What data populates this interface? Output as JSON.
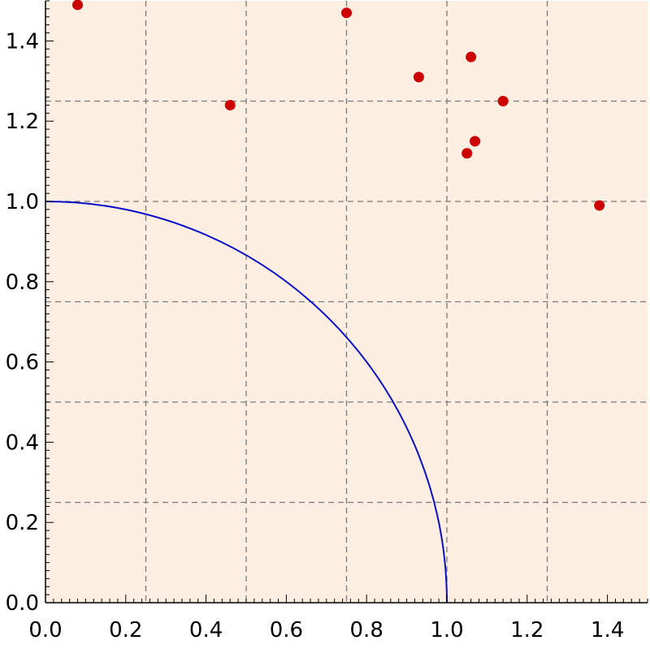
{
  "colors": {
    "plot_background": "#fdeee2",
    "grid": "#7a7a7a",
    "curve": "#0a10c8",
    "points": "#cc0000",
    "axis": "#000000"
  },
  "chart_data": {
    "type": "scatter",
    "title": "",
    "xlabel": "",
    "ylabel": "",
    "xlim": [
      0,
      1.5
    ],
    "ylim": [
      0,
      1.5
    ],
    "x_ticks": [
      0.0,
      0.2,
      0.4,
      0.6,
      0.8,
      1.0,
      1.2,
      1.4
    ],
    "y_ticks": [
      0.0,
      0.2,
      0.4,
      0.6,
      0.8,
      1.0,
      1.2,
      1.4
    ],
    "x_tick_labels": [
      "0.0",
      "0.2",
      "0.4",
      "0.6",
      "0.8",
      "1.0",
      "1.2",
      "1.4"
    ],
    "y_tick_labels": [
      "0.0",
      "0.2",
      "0.4",
      "0.6",
      "0.8",
      "1.0",
      "1.2",
      "1.4"
    ],
    "grid": true,
    "grid_lines_x": [
      0.25,
      0.5,
      0.75,
      1.0,
      1.25
    ],
    "grid_lines_y": [
      0.25,
      0.5,
      0.75,
      1.0,
      1.25
    ],
    "grid_style": "dashed",
    "legend": "none",
    "curve": {
      "shape": "quarter-circle",
      "radius": 1.0,
      "center": [
        0,
        0
      ]
    },
    "points": [
      {
        "x": 0.08,
        "y": 1.49
      },
      {
        "x": 0.46,
        "y": 1.24
      },
      {
        "x": 0.75,
        "y": 1.47
      },
      {
        "x": 0.93,
        "y": 1.31
      },
      {
        "x": 1.06,
        "y": 1.36
      },
      {
        "x": 1.14,
        "y": 1.25
      },
      {
        "x": 1.07,
        "y": 1.15
      },
      {
        "x": 1.05,
        "y": 1.12
      },
      {
        "x": 1.38,
        "y": 0.99
      }
    ]
  }
}
